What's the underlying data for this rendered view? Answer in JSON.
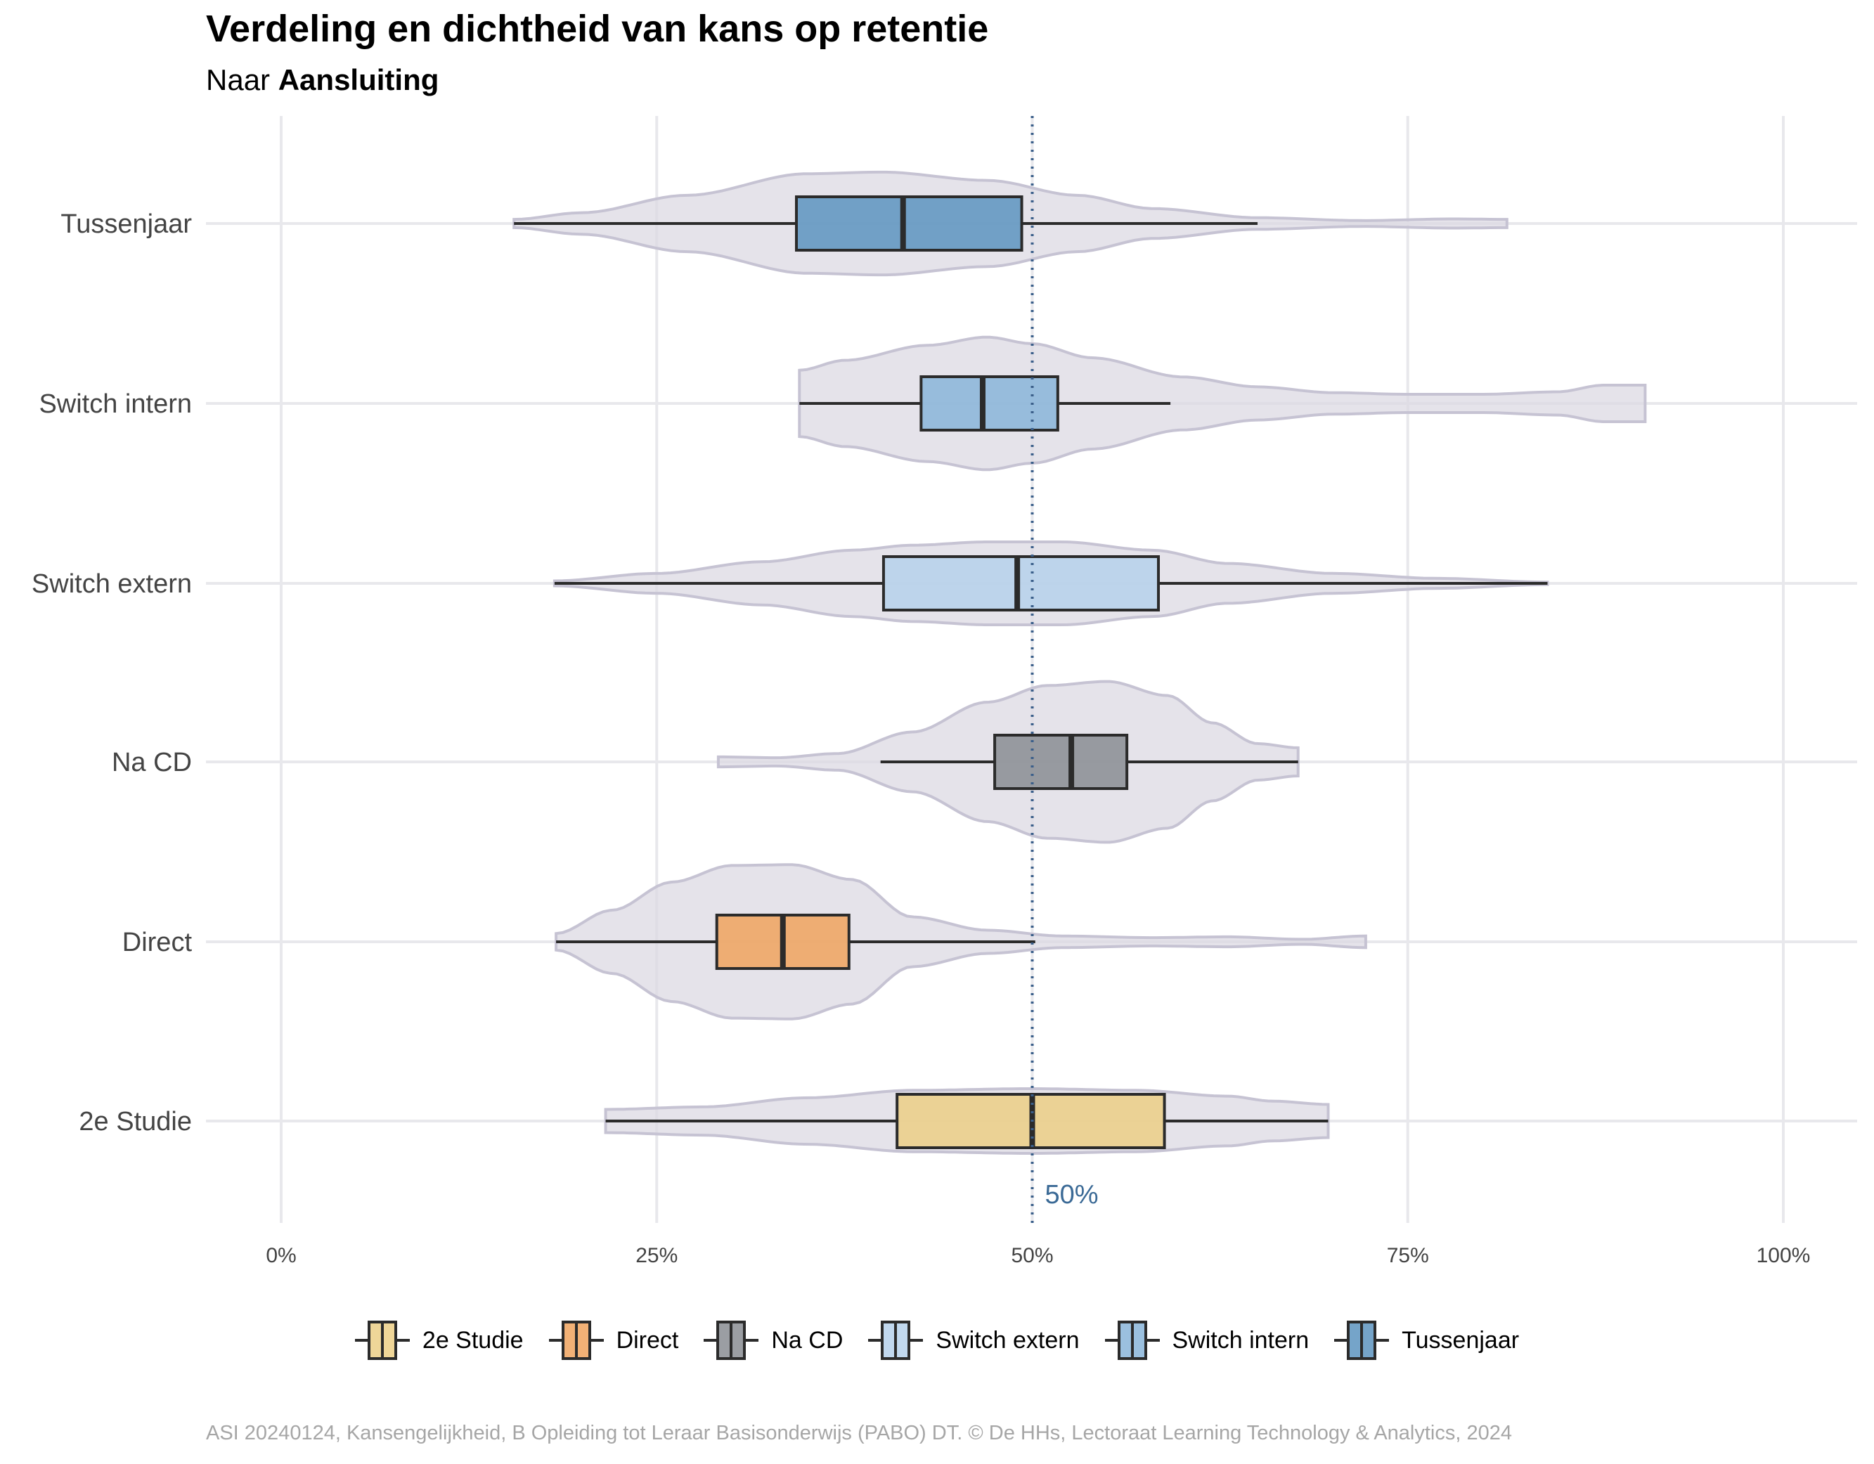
{
  "title": "Verdeling en dichtheid van kans op retentie",
  "subtitle_prefix": "Naar",
  "subtitle_bold": "Aansluiting",
  "caption": "ASI 20240124, Kansengelijkheid, B Opleiding tot Leraar Basisonderwijs (PABO) DT. © De HHs, Lectoraat Learning Technology & Analytics, 2024",
  "reference_label": "50%",
  "colors": {
    "violin_fill": "#dcd9e3",
    "violin_stroke": "#c6c3d3",
    "grid": "#e8e8ec",
    "reference_line": "#3b5f8a"
  },
  "chart_data": {
    "type": "violin-boxplot",
    "orientation": "horizontal",
    "xlim": [
      0,
      1
    ],
    "x_ticks": [
      0,
      0.25,
      0.5,
      0.75,
      1
    ],
    "x_tick_labels": [
      "0%",
      "25%",
      "50%",
      "75%",
      "100%"
    ],
    "reference_x": 0.5,
    "legend_position": "bottom",
    "grid": true,
    "categories": [
      "Tussenjaar",
      "Switch intern",
      "Switch extern",
      "Na CD",
      "Direct",
      "2e Studie"
    ],
    "series": [
      {
        "name": "Tussenjaar",
        "color": "#5d94c0",
        "whisker_low": 0.155,
        "q1": 0.343,
        "median": 0.414,
        "q3": 0.493,
        "whisker_high": 0.65,
        "violin_range": [
          0.155,
          0.816
        ],
        "density": [
          [
            0.155,
            0.05
          ],
          [
            0.2,
            0.13
          ],
          [
            0.27,
            0.34
          ],
          [
            0.35,
            0.6
          ],
          [
            0.4,
            0.62
          ],
          [
            0.47,
            0.52
          ],
          [
            0.53,
            0.34
          ],
          [
            0.58,
            0.18
          ],
          [
            0.65,
            0.07
          ],
          [
            0.72,
            0.035
          ],
          [
            0.78,
            0.055
          ],
          [
            0.816,
            0.05
          ]
        ]
      },
      {
        "name": "Switch intern",
        "color": "#8ab5d9",
        "whisker_low": 0.345,
        "q1": 0.426,
        "median": 0.467,
        "q3": 0.517,
        "whisker_high": 0.592,
        "violin_range": [
          0.345,
          0.908
        ],
        "density": [
          [
            0.345,
            0.4
          ],
          [
            0.375,
            0.52
          ],
          [
            0.43,
            0.7
          ],
          [
            0.47,
            0.8
          ],
          [
            0.5,
            0.72
          ],
          [
            0.54,
            0.55
          ],
          [
            0.6,
            0.32
          ],
          [
            0.65,
            0.2
          ],
          [
            0.7,
            0.13
          ],
          [
            0.75,
            0.11
          ],
          [
            0.8,
            0.11
          ],
          [
            0.85,
            0.14
          ],
          [
            0.88,
            0.22
          ],
          [
            0.908,
            0.22
          ]
        ]
      },
      {
        "name": "Switch extern",
        "color": "#b6d1eb",
        "whisker_low": 0.182,
        "q1": 0.401,
        "median": 0.49,
        "q3": 0.584,
        "whisker_high": 0.843,
        "violin_range": [
          0.182,
          0.843
        ],
        "density": [
          [
            0.182,
            0.03
          ],
          [
            0.25,
            0.12
          ],
          [
            0.32,
            0.26
          ],
          [
            0.38,
            0.4
          ],
          [
            0.42,
            0.46
          ],
          [
            0.47,
            0.5
          ],
          [
            0.52,
            0.5
          ],
          [
            0.58,
            0.4
          ],
          [
            0.63,
            0.24
          ],
          [
            0.7,
            0.12
          ],
          [
            0.77,
            0.06
          ],
          [
            0.843,
            0.015
          ]
        ]
      },
      {
        "name": "Na CD",
        "color": "#8a8d93",
        "whisker_low": 0.399,
        "q1": 0.475,
        "median": 0.526,
        "q3": 0.563,
        "whisker_high": 0.677,
        "violin_range": [
          0.291,
          0.677
        ],
        "density": [
          [
            0.291,
            0.06
          ],
          [
            0.33,
            0.05
          ],
          [
            0.37,
            0.1
          ],
          [
            0.42,
            0.36
          ],
          [
            0.47,
            0.72
          ],
          [
            0.51,
            0.92
          ],
          [
            0.55,
            0.97
          ],
          [
            0.59,
            0.8
          ],
          [
            0.62,
            0.47
          ],
          [
            0.65,
            0.22
          ],
          [
            0.677,
            0.17
          ]
        ]
      },
      {
        "name": "Direct",
        "color": "#f0a35e",
        "whisker_low": 0.183,
        "q1": 0.29,
        "median": 0.334,
        "q3": 0.378,
        "whisker_high": 0.502,
        "violin_range": [
          0.183,
          0.722
        ],
        "density": [
          [
            0.183,
            0.1
          ],
          [
            0.22,
            0.38
          ],
          [
            0.26,
            0.72
          ],
          [
            0.3,
            0.92
          ],
          [
            0.34,
            0.93
          ],
          [
            0.38,
            0.75
          ],
          [
            0.42,
            0.3
          ],
          [
            0.47,
            0.14
          ],
          [
            0.52,
            0.07
          ],
          [
            0.58,
            0.05
          ],
          [
            0.63,
            0.06
          ],
          [
            0.68,
            0.03
          ],
          [
            0.722,
            0.07
          ]
        ]
      },
      {
        "name": "2e Studie",
        "color": "#eccf86",
        "whisker_low": 0.216,
        "q1": 0.41,
        "median": 0.5,
        "q3": 0.588,
        "whisker_high": 0.697,
        "violin_range": [
          0.216,
          0.697
        ],
        "density": [
          [
            0.216,
            0.14
          ],
          [
            0.28,
            0.17
          ],
          [
            0.35,
            0.28
          ],
          [
            0.42,
            0.37
          ],
          [
            0.5,
            0.39
          ],
          [
            0.57,
            0.37
          ],
          [
            0.63,
            0.3
          ],
          [
            0.66,
            0.24
          ],
          [
            0.697,
            0.2
          ]
        ]
      }
    ]
  }
}
